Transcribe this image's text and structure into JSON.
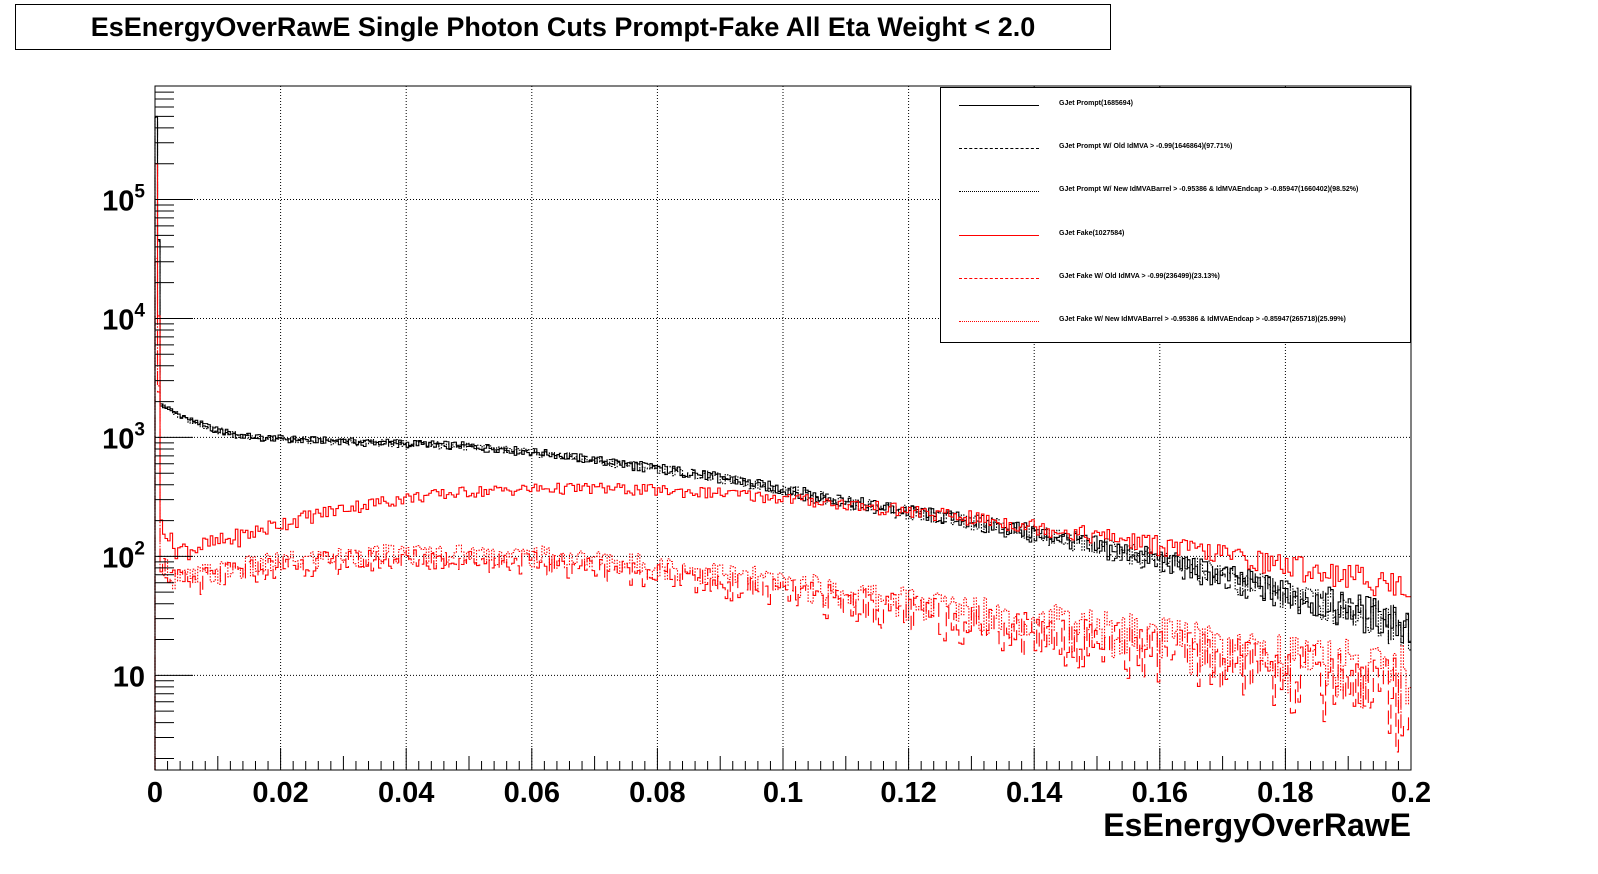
{
  "chart_data": {
    "type": "line",
    "title": "EsEnergyOverRawE Single Photon Cuts Prompt-Fake All Eta Weight < 2.0",
    "xlabel": "EsEnergyOverRawE",
    "ylabel": "",
    "xlim": [
      0,
      0.2
    ],
    "ylim": [
      1.6,
      900000
    ],
    "yscale": "log",
    "grid": true,
    "legend_position": "top-right",
    "x_ticks": [
      "0",
      "0.02",
      "0.04",
      "0.06",
      "0.08",
      "0.1",
      "0.12",
      "0.14",
      "0.16",
      "0.18",
      "0.2"
    ],
    "y_ticks": [
      {
        "value": 10,
        "base": "10",
        "exp": ""
      },
      {
        "value": 100,
        "base": "10",
        "exp": "2"
      },
      {
        "value": 1000,
        "base": "10",
        "exp": "3"
      },
      {
        "value": 10000,
        "base": "10",
        "exp": "4"
      },
      {
        "value": 100000,
        "base": "10",
        "exp": "5"
      }
    ],
    "series": [
      {
        "name": "GJet Prompt(1685694)",
        "color": "#000000",
        "style": "solid",
        "x": [
          0.0003,
          0.001,
          0.003,
          0.005,
          0.01,
          0.015,
          0.02,
          0.03,
          0.04,
          0.05,
          0.06,
          0.07,
          0.08,
          0.09,
          0.1,
          0.11,
          0.12,
          0.13,
          0.14,
          0.15,
          0.16,
          0.17,
          0.18,
          0.19,
          0.2
        ],
        "y": [
          500000,
          1900,
          1650,
          1450,
          1150,
          1020,
          980,
          930,
          900,
          850,
          760,
          650,
          560,
          460,
          370,
          290,
          240,
          200,
          160,
          125,
          95,
          70,
          50,
          38,
          28
        ]
      },
      {
        "name": "GJet Prompt W/ Old IdMVA > -0.99(1646864)(97.71%)",
        "color": "#000000",
        "style": "dashed",
        "x": [
          0.0003,
          0.001,
          0.003,
          0.005,
          0.01,
          0.015,
          0.02,
          0.03,
          0.04,
          0.05,
          0.06,
          0.07,
          0.08,
          0.09,
          0.1,
          0.11,
          0.12,
          0.13,
          0.14,
          0.15,
          0.16,
          0.17,
          0.18,
          0.19,
          0.2
        ],
        "y": [
          490000,
          1860,
          1620,
          1420,
          1130,
          1000,
          960,
          910,
          880,
          830,
          740,
          635,
          545,
          450,
          360,
          283,
          234,
          195,
          156,
          122,
          93,
          68,
          49,
          37,
          27
        ]
      },
      {
        "name": "GJet Prompt W/ New IdMVABarrel > -0.95386 & IdMVAEndcap > -0.85947(1660402)(98.52%)",
        "color": "#000000",
        "style": "dotted",
        "x": [
          0.0003,
          0.001,
          0.003,
          0.005,
          0.01,
          0.015,
          0.02,
          0.03,
          0.04,
          0.05,
          0.06,
          0.07,
          0.08,
          0.09,
          0.1,
          0.11,
          0.12,
          0.13,
          0.14,
          0.15,
          0.16,
          0.17,
          0.18,
          0.19,
          0.2
        ],
        "y": [
          495000,
          1880,
          1630,
          1435,
          1140,
          1010,
          970,
          920,
          890,
          840,
          750,
          642,
          552,
          455,
          365,
          286,
          237,
          197,
          158,
          123,
          94,
          69,
          49,
          37,
          27
        ]
      },
      {
        "name": "GJet Fake(1027584)",
        "color": "#ff0000",
        "style": "solid",
        "x": [
          0.0003,
          0.001,
          0.003,
          0.005,
          0.01,
          0.015,
          0.02,
          0.03,
          0.04,
          0.05,
          0.06,
          0.07,
          0.08,
          0.09,
          0.1,
          0.11,
          0.12,
          0.13,
          0.14,
          0.15,
          0.16,
          0.17,
          0.18,
          0.19,
          0.2
        ],
        "y": [
          200000,
          200,
          120,
          115,
          130,
          155,
          190,
          255,
          310,
          350,
          370,
          375,
          360,
          340,
          310,
          275,
          240,
          210,
          180,
          150,
          125,
          105,
          85,
          70,
          55
        ]
      },
      {
        "name": "GJet Fake W/ Old IdMVA > -0.99(236499)(23.13%)",
        "color": "#ff0000",
        "style": "dashed",
        "x": [
          0.0003,
          0.001,
          0.003,
          0.005,
          0.01,
          0.015,
          0.02,
          0.03,
          0.04,
          0.05,
          0.06,
          0.07,
          0.08,
          0.09,
          0.1,
          0.11,
          0.12,
          0.13,
          0.14,
          0.15,
          0.16,
          0.17,
          0.18,
          0.19,
          0.2
        ],
        "y": [
          30000,
          90,
          62,
          60,
          68,
          76,
          84,
          92,
          96,
          94,
          90,
          82,
          72,
          60,
          50,
          42,
          35,
          29,
          24,
          20,
          17,
          14,
          12,
          10,
          8
        ]
      },
      {
        "name": "GJet Fake W/ New IdMVABarrel > -0.95386 & IdMVAEndcap > -0.85947(265718)(25.99%)",
        "color": "#ff0000",
        "style": "dotted",
        "x": [
          0.0003,
          0.001,
          0.003,
          0.005,
          0.01,
          0.015,
          0.02,
          0.03,
          0.04,
          0.05,
          0.06,
          0.07,
          0.08,
          0.09,
          0.1,
          0.11,
          0.12,
          0.13,
          0.14,
          0.15,
          0.16,
          0.17,
          0.18,
          0.19,
          0.2
        ],
        "y": [
          32000,
          95,
          66,
          64,
          74,
          82,
          90,
          100,
          106,
          106,
          102,
          94,
          84,
          72,
          60,
          50,
          42,
          36,
          30,
          25,
          21,
          18,
          15,
          13,
          11
        ]
      }
    ]
  }
}
